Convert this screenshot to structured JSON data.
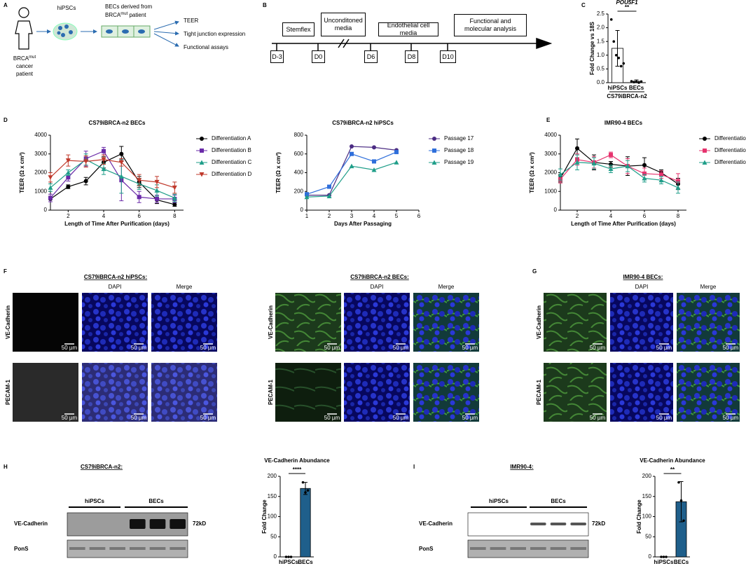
{
  "panel_labels": [
    "A",
    "B",
    "C",
    "D",
    "E",
    "F",
    "G",
    "H",
    "I"
  ],
  "schematic": {
    "patient": [
      "BRCA",
      "mut",
      "cancer",
      "patient"
    ],
    "hipscs": "hiPSCs",
    "becs": [
      "BECs derived from",
      "BRCA",
      "mut",
      " patient"
    ],
    "outcomes": [
      "TEER",
      "Tight junction expression",
      "Functional assays"
    ]
  },
  "timeline": {
    "stages": [
      "Stemflex",
      "Unconditoned media",
      "Endothelial cell media",
      "Functional and molecular analysis"
    ],
    "days": [
      "D-3",
      "D0",
      "D6",
      "D8",
      "D10"
    ]
  },
  "imaging": {
    "titles": [
      "CS79iBRCA-n2 hiPSCs:",
      "CS79iBRCA-n2 BECs:",
      "IMR90-4 BECs:"
    ],
    "columns": [
      "DAPI",
      "Merge"
    ],
    "rows": [
      "VE-Cadherin",
      "PECAM-1"
    ],
    "scale_bar": "50 µm"
  },
  "blots": [
    {
      "title": "CS79iBRCA-n2:",
      "groups": [
        "hiPSCs",
        "BECs"
      ],
      "rows": [
        "VE-Cadherin",
        "PonS"
      ],
      "size": "72kD"
    },
    {
      "title": "IMR90-4:",
      "groups": [
        "hiPSCs",
        "BECs"
      ],
      "rows": [
        "VE-Cadherin",
        "PonS"
      ],
      "size": "72kD"
    }
  ],
  "chart_data": [
    {
      "type": "bar",
      "title": "POU5F1",
      "y_label": "Fold Change vs 18S",
      "categories": [
        "hiPSCs",
        "BECs"
      ],
      "group_label": "CS79iBRCA-n2",
      "values": [
        1.25,
        0.05
      ],
      "errors": [
        0.65,
        0.05
      ],
      "points": [
        [
          2.3,
          1.5,
          1.0,
          0.9,
          0.6,
          0.7
        ],
        [
          0.05,
          0.02,
          0.03,
          0.0,
          0.04
        ]
      ],
      "color": "#ffffff",
      "annotation": "**",
      "ylim": [
        0,
        2.5
      ],
      "yticks": [
        {
          "value": 0,
          "label": "0.0"
        },
        {
          "value": 0.5,
          "label": "0.5"
        },
        {
          "value": 1,
          "label": "1.0"
        },
        {
          "value": 1.5,
          "label": "1.5"
        },
        {
          "value": 2,
          "label": "2.0"
        },
        {
          "value": 2.5,
          "label": "2.5"
        }
      ]
    },
    {
      "type": "line",
      "title": "CS79iBRCA-n2 BECs",
      "x_label": "Length of Time After Purification (days)",
      "y_label": "TEER (Ω x cm²)",
      "x": [
        1,
        2,
        3,
        4,
        5,
        6,
        7,
        8
      ],
      "xlim": [
        1,
        8.5
      ],
      "xticks": [
        2,
        4,
        6,
        8
      ],
      "ylim": [
        0,
        4000
      ],
      "yticks": [
        0,
        1000,
        2000,
        3000,
        4000
      ],
      "series": [
        {
          "name": "Differentiation A",
          "color": "#000000",
          "marker": "circle",
          "values": [
            600,
            1250,
            1550,
            2550,
            3000,
            1500,
            550,
            300
          ],
          "errors": [
            150,
            100,
            200,
            300,
            400,
            300,
            200,
            100
          ]
        },
        {
          "name": "Differentiation B",
          "color": "#6a2aa8",
          "marker": "square",
          "values": [
            650,
            1750,
            2750,
            3150,
            1600,
            700,
            600,
            600
          ],
          "errors": [
            200,
            200,
            400,
            200,
            1100,
            300,
            200,
            200
          ]
        },
        {
          "name": "Differentiation C",
          "color": "#1f9e89",
          "marker": "triangle",
          "values": [
            1200,
            2000,
            2700,
            2200,
            1800,
            1400,
            1050,
            650
          ],
          "errors": [
            200,
            150,
            300,
            300,
            900,
            300,
            300,
            200
          ]
        },
        {
          "name": "Differentiation D",
          "color": "#c0392b",
          "marker": "triangle-down",
          "values": [
            1750,
            2650,
            2600,
            2700,
            2550,
            1600,
            1500,
            1200
          ],
          "errors": [
            250,
            300,
            300,
            250,
            200,
            300,
            300,
            300
          ]
        }
      ]
    },
    {
      "type": "line",
      "title": "CS79iBRCA-n2 hiPSCs",
      "x_label": "Days After Passaging",
      "y_label": "TEER (Ω x cm²)",
      "x": [
        1,
        2,
        3,
        4,
        5
      ],
      "xlim": [
        1,
        6
      ],
      "xticks": [
        1,
        2,
        3,
        4,
        5,
        6
      ],
      "ylim": [
        0,
        800
      ],
      "yticks": [
        0,
        200,
        400,
        600,
        800
      ],
      "series": [
        {
          "name": "Passage 17",
          "color": "#4b2c83",
          "marker": "circle",
          "values": [
            160,
            160,
            680,
            670,
            640
          ]
        },
        {
          "name": "Passage 18",
          "color": "#2f6fdb",
          "marker": "square",
          "values": [
            170,
            250,
            600,
            520,
            620
          ]
        },
        {
          "name": "Passage 19",
          "color": "#1f9e89",
          "marker": "triangle",
          "values": [
            140,
            150,
            470,
            430,
            510
          ]
        }
      ]
    },
    {
      "type": "line",
      "title": "IMR90-4 BECs",
      "x_label": "Length of Time After Purification (days)",
      "y_label": "TEER (Ω x cm²)",
      "x": [
        1,
        2,
        3,
        4,
        5,
        6,
        7,
        8
      ],
      "xlim": [
        1,
        8.5
      ],
      "xticks": [
        2,
        4,
        6,
        8
      ],
      "ylim": [
        0,
        4000
      ],
      "yticks": [
        0,
        1000,
        2000,
        3000,
        4000
      ],
      "series": [
        {
          "name": "Differentiation A",
          "color": "#000000",
          "marker": "circle",
          "values": [
            1700,
            3300,
            2550,
            2450,
            2350,
            2400,
            2000,
            1400
          ],
          "errors": [
            200,
            500,
            400,
            150,
            500,
            400,
            150,
            300
          ]
        },
        {
          "name": "Differentiation B",
          "color": "#e6336e",
          "marker": "square",
          "values": [
            1650,
            2700,
            2550,
            2950,
            2350,
            1950,
            1900,
            1550
          ],
          "errors": [
            200,
            300,
            300,
            150,
            400,
            300,
            200,
            400
          ]
        },
        {
          "name": "Differentiation C",
          "color": "#1f9e89",
          "marker": "triangle",
          "values": [
            1900,
            2550,
            2500,
            2200,
            2350,
            1700,
            1600,
            1200
          ],
          "errors": [
            300,
            400,
            300,
            200,
            300,
            200,
            200,
            300
          ]
        }
      ]
    },
    {
      "type": "bar",
      "title": "VE-Cadherin Abundance",
      "y_label": "Fold Change",
      "categories": [
        "hiPSCs",
        "BECs"
      ],
      "values": [
        0,
        170
      ],
      "errors": [
        0,
        15
      ],
      "points": [
        [
          0,
          0,
          0
        ],
        [
          185,
          160,
          165
        ]
      ],
      "color": "#1f5f8b",
      "annotation": "****",
      "ylim": [
        0,
        200
      ],
      "yticks": [
        0,
        50,
        100,
        150,
        200
      ]
    },
    {
      "type": "bar",
      "title": "VE-Cadherin Abundance",
      "y_label": "Fold Change",
      "categories": [
        "hiPSCs",
        "BECs"
      ],
      "values": [
        0,
        137
      ],
      "errors": [
        0,
        50
      ],
      "points": [
        [
          0,
          0,
          0
        ],
        [
          185,
          140,
          90
        ]
      ],
      "color": "#1f5f8b",
      "annotation": "**",
      "ylim": [
        0,
        200
      ],
      "yticks": [
        0,
        50,
        100,
        150,
        200
      ]
    }
  ]
}
